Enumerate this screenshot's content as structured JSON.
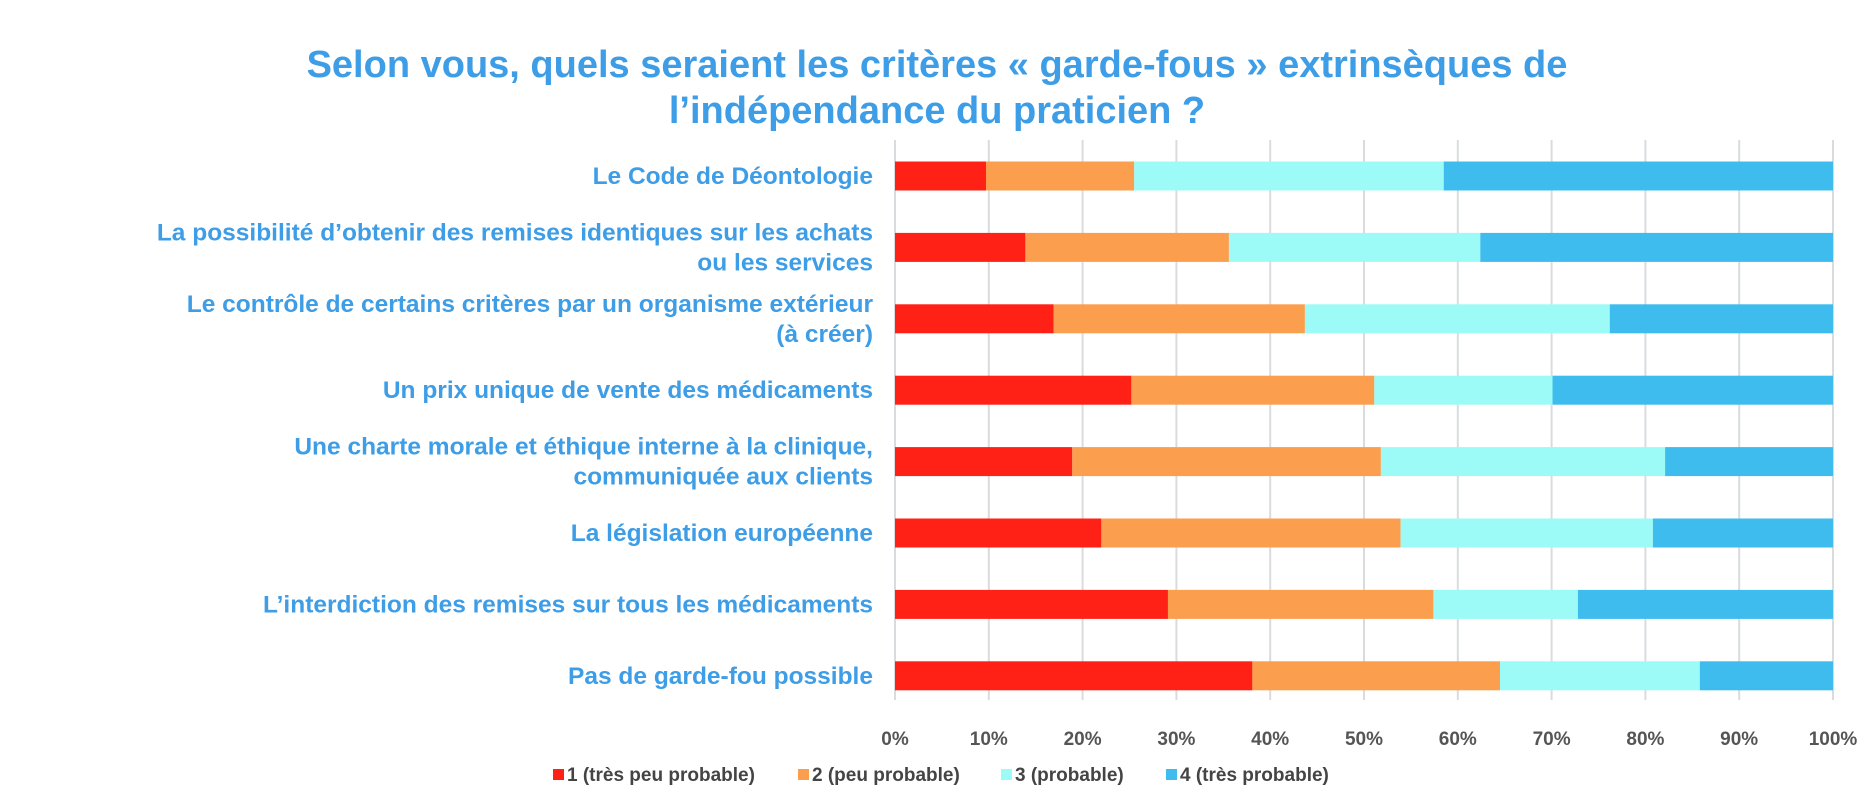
{
  "chart_data": {
    "type": "bar",
    "orientation": "horizontal",
    "stacked": "100%",
    "title": [
      "Selon vous, quels seraient les critères « garde-fous » extrinsèques de",
      "l’indépendance du praticien ?"
    ],
    "categories": [
      [
        "Le Code de Déontologie"
      ],
      [
        "La possibilité d’obtenir des remises identiques sur les achats",
        "ou les services"
      ],
      [
        "Le contrôle de certains critères par un organisme extérieur",
        "(à créer)"
      ],
      [
        "Un prix unique de vente des médicaments"
      ],
      [
        "Une charte morale et éthique interne à la clinique,",
        "communiquée aux clients"
      ],
      [
        "La législation européenne"
      ],
      [
        "L’interdiction des remises sur tous les médicaments"
      ],
      [
        "Pas de garde-fou possible"
      ]
    ],
    "series": [
      {
        "name": "1 (très peu probable)",
        "color": "#ff2116",
        "values": [
          9.7,
          13.9,
          16.9,
          25.2,
          18.9,
          22.0,
          29.1,
          38.1
        ]
      },
      {
        "name": "2 (peu probable)",
        "color": "#fb9e4e",
        "values": [
          15.8,
          21.7,
          26.8,
          25.9,
          32.9,
          31.9,
          28.3,
          26.4
        ]
      },
      {
        "name": "3 (probable)",
        "color": "#9cfbf6",
        "values": [
          33.0,
          26.8,
          32.5,
          19.0,
          30.3,
          26.9,
          15.4,
          21.3
        ]
      },
      {
        "name": "4 (très probable)",
        "color": "#3ebcee",
        "values": [
          41.5,
          37.6,
          23.8,
          29.9,
          17.9,
          19.2,
          27.2,
          14.2
        ]
      }
    ],
    "x_ticks": [
      "0%",
      "10%",
      "20%",
      "30%",
      "40%",
      "50%",
      "60%",
      "70%",
      "80%",
      "90%",
      "100%"
    ],
    "xlim": [
      0,
      100
    ],
    "grid": true,
    "legend_position": "bottom"
  }
}
